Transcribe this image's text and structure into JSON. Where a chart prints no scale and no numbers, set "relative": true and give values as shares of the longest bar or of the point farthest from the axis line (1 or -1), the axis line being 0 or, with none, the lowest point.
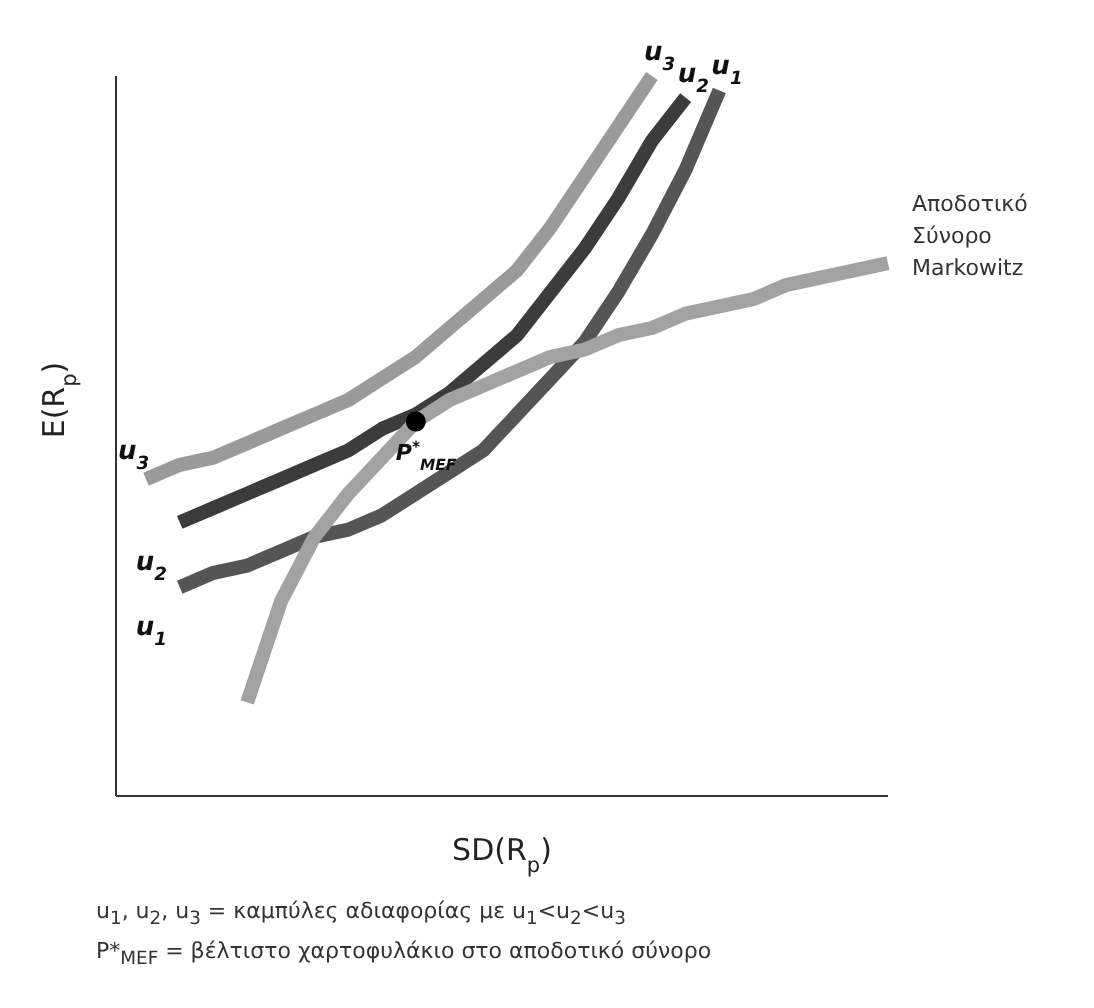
{
  "chart_data": {
    "type": "line",
    "relative": true,
    "xlabel": "SD(R$_{p}$)",
    "ylabel": "E(R$_{p}$)",
    "categories": [
      null,
      null,
      null,
      null,
      null,
      null,
      null,
      null,
      null,
      null,
      null,
      null,
      null,
      null,
      null,
      null,
      null,
      null,
      null,
      null,
      null,
      null,
      null
    ],
    "series": [
      {
        "name": "u$_{3}$",
        "color": "#9a9a9a",
        "values": [
          0.44,
          0.46,
          0.47,
          0.49,
          0.51,
          0.53,
          0.55,
          0.58,
          0.61,
          0.65,
          0.69,
          0.73,
          0.79,
          0.86,
          0.93,
          1,
          null,
          null,
          null,
          null,
          null,
          null,
          null
        ]
      },
      {
        "name": "u$_{2}$",
        "color": "#3c3c3c",
        "values": [
          null,
          0.38,
          0.4,
          0.42,
          0.44,
          0.46,
          0.48,
          0.51,
          0.53,
          0.56,
          0.6,
          0.64,
          0.7,
          0.76,
          0.83,
          0.91,
          0.97,
          null,
          null,
          null,
          null,
          null,
          null
        ]
      },
      {
        "name": "u$_{1}$",
        "color": "#555555",
        "values": [
          null,
          0.29,
          0.31,
          0.32,
          0.34,
          0.36,
          0.37,
          0.39,
          0.42,
          0.45,
          0.48,
          0.53,
          0.58,
          0.63,
          0.7,
          0.78,
          0.87,
          0.98,
          null,
          null,
          null,
          null,
          null
        ]
      },
      {
        "name": "Αποδοτικό Σύνορο Markowitz",
        "color": "#a2a2a2",
        "values": [
          null,
          null,
          null,
          0.13,
          0.27,
          0.36,
          0.42,
          0.47,
          0.52,
          0.55,
          0.57,
          0.59,
          0.61,
          0.62,
          0.64,
          0.65,
          0.67,
          0.68,
          0.69,
          0.71,
          0.72,
          0.73,
          0.74
        ]
      }
    ],
    "annotations": [
      {
        "text": "P$^{*}$$_{MEF}$",
        "y": 0.53
      },
      "u$_{1}$, u$_{2}$, u$_{3}$ = καμπύλες αδιαφορίας με u$_{1}$<u$_{2}$<u$_{3}$",
      "P*$_{MEF}$ = βέλτιστο χαρτοφυλάκιο στο αποδοτικό σύνορο"
    ]
  }
}
